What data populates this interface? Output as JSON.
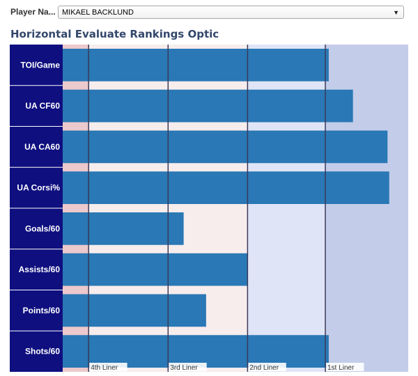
{
  "filter": {
    "label": "Player Na...",
    "value": "MIKAEL BACKLUND",
    "arrow_icon": "chevron-down-icon"
  },
  "chart_title": "Horizontal Evaluate Rankings Optic",
  "colors": {
    "label_panel": "#0f0f80",
    "bar": "#2a78b5",
    "zone_4th": "#ecc9cc",
    "zone_3rd": "#f7eded",
    "zone_2nd": "#dfe5f6",
    "zone_1st": "#c3cde9",
    "line": "#3a3a5a"
  },
  "chart_data": {
    "type": "bar",
    "orientation": "horizontal",
    "title": "Horizontal Evaluate Rankings Optic",
    "categories": [
      "TOI/Game",
      "UA CF60",
      "UA CA60",
      "UA Corsi%",
      "Goals/60",
      "Assists/60",
      "Points/60",
      "Shots/60"
    ],
    "values": [
      0.77,
      0.84,
      0.94,
      0.945,
      0.35,
      0.535,
      0.415,
      0.77
    ],
    "xlim": [
      0,
      1
    ],
    "zone_bounds": [
      0,
      0.075,
      0.305,
      0.535,
      0.76,
      1.0
    ],
    "thresholds": [
      {
        "label": "4th Liner",
        "value": 0.075
      },
      {
        "label": "3rd Liner",
        "value": 0.305
      },
      {
        "label": "2nd Liner",
        "value": 0.535
      },
      {
        "label": "1st Liner",
        "value": 0.76
      }
    ]
  }
}
